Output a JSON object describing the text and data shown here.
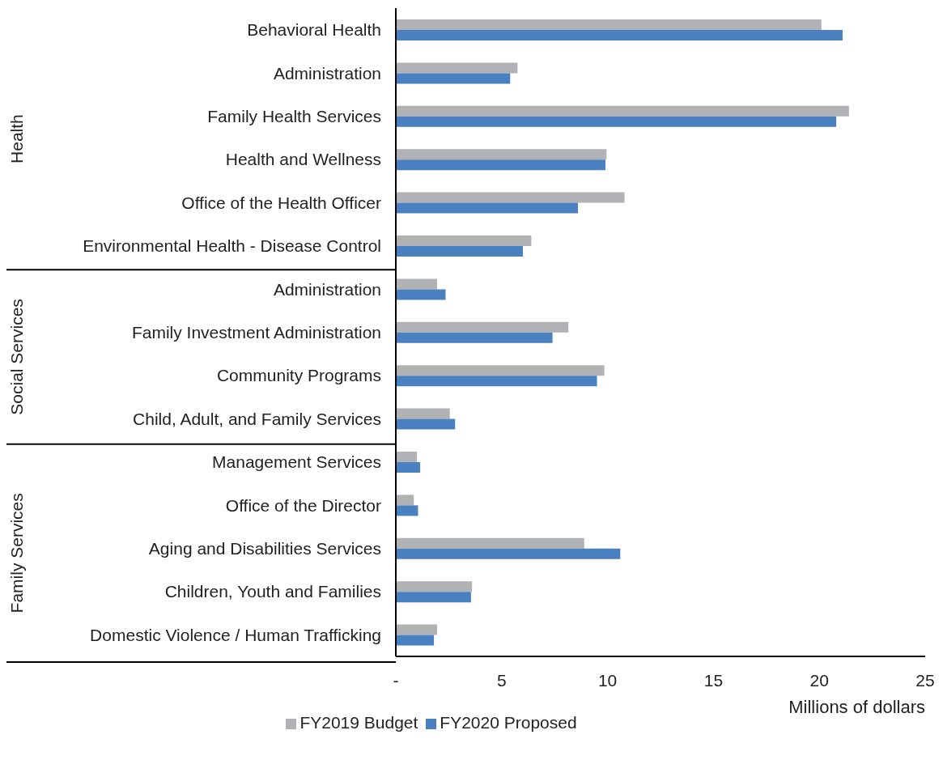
{
  "chart_data": {
    "type": "bar",
    "orientation": "horizontal",
    "categories": [
      "Behavioral Health",
      "Administration",
      "Family Health Services",
      "Health and Wellness",
      "Office of the Health Officer",
      "Environmental Health - Disease Control",
      "Administration",
      "Family Investment Administration",
      "Community Programs",
      "Child, Adult, and Family Services",
      "Management Services",
      "Office of the Director",
      "Aging and Disabilities Services",
      "Children, Youth and Families",
      "Domestic Violence / Human Trafficking"
    ],
    "series": [
      {
        "name": "FY2019 Budget",
        "color": "#b1b2b5",
        "values": [
          20.1,
          5.75,
          21.4,
          9.95,
          10.8,
          6.4,
          1.95,
          8.15,
          9.85,
          2.55,
          1.0,
          0.85,
          8.9,
          3.6,
          1.95
        ]
      },
      {
        "name": "FY2020 Proposed",
        "color": "#4a80c0",
        "values": [
          21.1,
          5.4,
          20.8,
          9.9,
          8.6,
          6.0,
          2.35,
          7.4,
          9.5,
          2.8,
          1.15,
          1.05,
          10.6,
          3.55,
          1.8
        ]
      }
    ],
    "xlim": [
      0,
      25
    ],
    "xticks": [
      {
        "value": 0,
        "label": "-"
      },
      5,
      10,
      15,
      20,
      25
    ],
    "xlabel": "Millions of dollars",
    "legend": "bottom",
    "annotations": [
      "Health",
      "Social Services",
      "Family Services"
    ]
  }
}
